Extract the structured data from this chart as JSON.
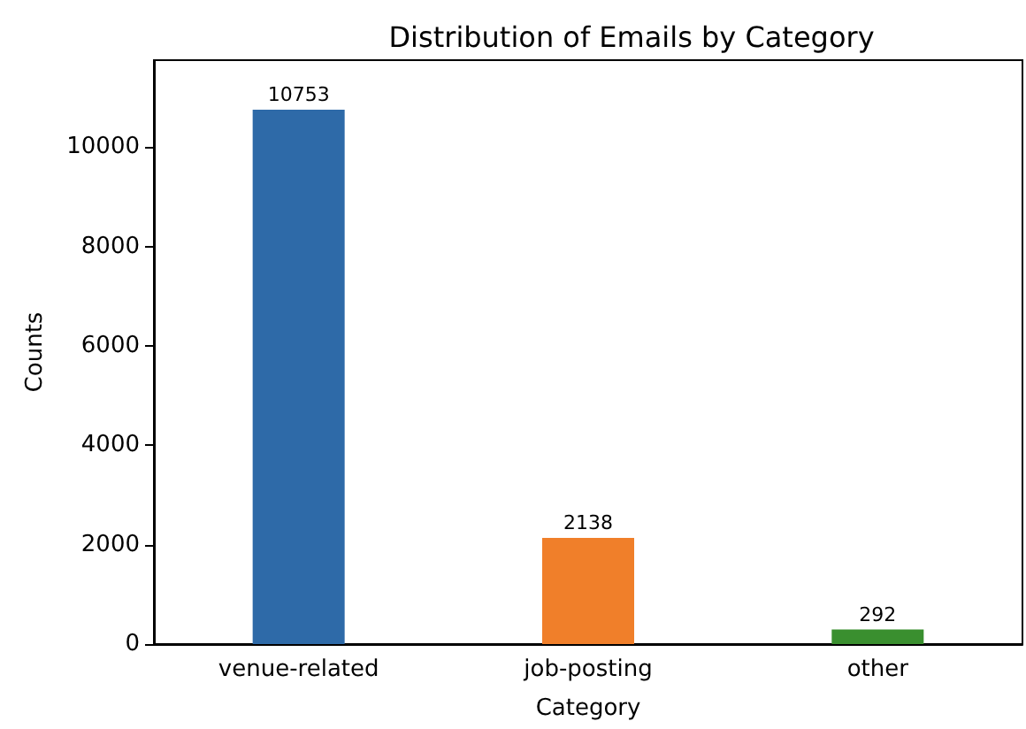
{
  "chart_data": {
    "type": "bar",
    "title": "Distribution of Emails by Category",
    "xlabel": "Category",
    "ylabel": "Counts",
    "categories": [
      "venue-related",
      "job-posting",
      "other"
    ],
    "values": [
      10753,
      2138,
      292
    ],
    "colors": [
      "#2e6aa8",
      "#f07f2a",
      "#3a8f2f"
    ],
    "ylim": [
      0,
      11750
    ],
    "yticks": [
      0,
      2000,
      4000,
      6000,
      8000,
      10000
    ],
    "grid": false,
    "data_labels": true
  }
}
